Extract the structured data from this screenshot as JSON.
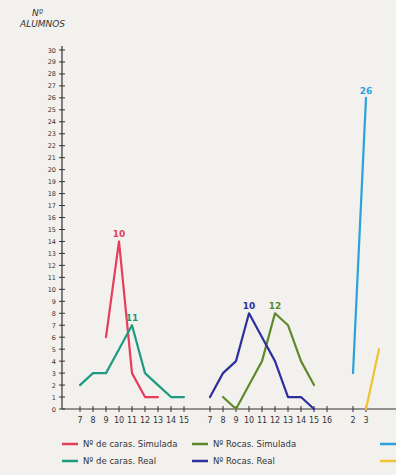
{
  "chart_data": {
    "type": "line",
    "y_label": "Nº ALUMNOS",
    "categories": [
      "7",
      "8",
      "9",
      "10",
      "11",
      "12",
      "13",
      "14",
      "15",
      null,
      "7",
      "8",
      "9",
      "10",
      "11",
      "12",
      "13",
      "14",
      "15",
      "16",
      null,
      "2",
      "3",
      null
    ],
    "ylim": [
      0,
      30
    ],
    "yticks": [
      0,
      1,
      2,
      3,
      4,
      5,
      6,
      7,
      8,
      9,
      10,
      11,
      12,
      13,
      14,
      15,
      16,
      17,
      18,
      19,
      20,
      21,
      22,
      23,
      24,
      25,
      26,
      27,
      28,
      29,
      30
    ],
    "grid": false,
    "legend": "bottom",
    "series": [
      {
        "name": "Nº de caras. Simulada",
        "color": "#e63d5a",
        "values": [
          null,
          null,
          6,
          14,
          3,
          1,
          1,
          null,
          null,
          null,
          null,
          null,
          null,
          null,
          null,
          null,
          null,
          null,
          null,
          null,
          null,
          null,
          null,
          null
        ]
      },
      {
        "name": "Nº de caras. Real",
        "color": "#1f9a80",
        "values": [
          2,
          3,
          3,
          5,
          7,
          3,
          2,
          1,
          1,
          null,
          null,
          null,
          null,
          null,
          null,
          null,
          null,
          null,
          null,
          null,
          null,
          null,
          null,
          null
        ]
      },
      {
        "name": "Nº Rocas. Simulada",
        "color": "#5e8a2c",
        "values": [
          null,
          null,
          null,
          null,
          null,
          null,
          null,
          null,
          null,
          null,
          null,
          1,
          0,
          2,
          4,
          8,
          7,
          4,
          2,
          null,
          null,
          null,
          null,
          null
        ]
      },
      {
        "name": "Nº Rocas. Real",
        "color": "#2c2f9c",
        "values": [
          null,
          null,
          null,
          null,
          null,
          null,
          null,
          null,
          null,
          null,
          1,
          3,
          4,
          8,
          6,
          4,
          1,
          1,
          0,
          null,
          null,
          null,
          null,
          null
        ]
      },
      {
        "color": "#2aa3dc",
        "values": [
          null,
          null,
          null,
          null,
          null,
          null,
          null,
          null,
          null,
          null,
          null,
          null,
          null,
          null,
          null,
          null,
          null,
          null,
          null,
          null,
          null,
          3,
          26,
          null
        ]
      },
      {
        "color": "#f2c230",
        "values": [
          null,
          null,
          null,
          null,
          null,
          null,
          null,
          null,
          null,
          null,
          null,
          null,
          null,
          null,
          null,
          null,
          null,
          null,
          null,
          null,
          null,
          null,
          0,
          5
        ]
      }
    ],
    "annotations": [
      {
        "text": "10",
        "series": 0,
        "index": 3
      },
      {
        "text": "11",
        "series": 1,
        "index": 4
      },
      {
        "text": "10",
        "series": 3,
        "index": 13
      },
      {
        "text": "12",
        "series": 2,
        "index": 15
      },
      {
        "text": "26",
        "series": 4,
        "index": 22
      }
    ]
  }
}
